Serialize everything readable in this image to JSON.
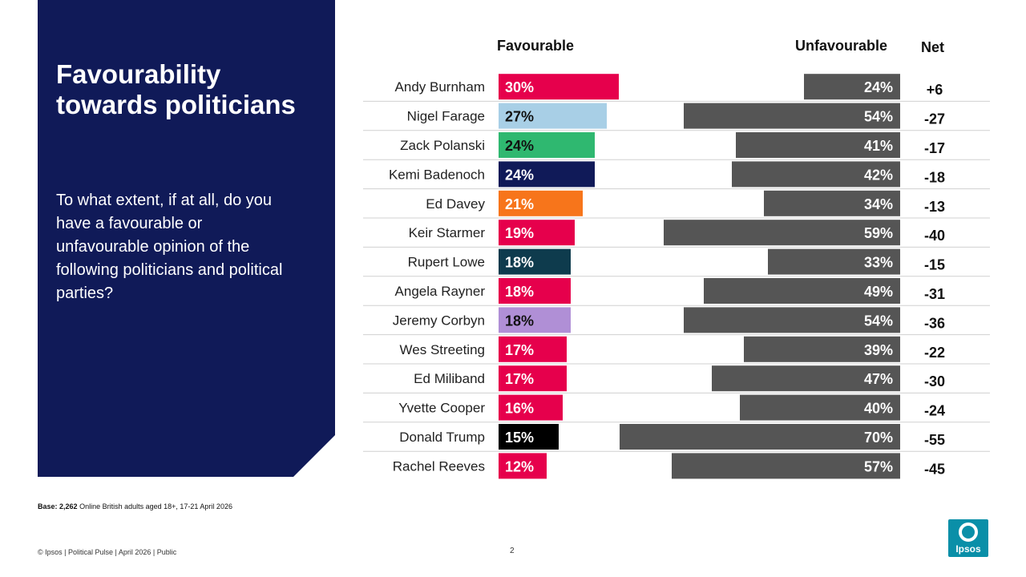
{
  "title": "Favourability towards politicians",
  "question": "To what extent, if at all, do you have a favourable or unfavourable opinion of the following politicians and political parties?",
  "headers": {
    "favourable": "Favourable",
    "unfavourable": "Unfavourable",
    "net": "Net"
  },
  "footnote": {
    "base_label": "Base:",
    "base_value": "2,262",
    "base_text": "Online British adults aged 18+,  17-21 April 2026"
  },
  "footer": "© Ipsos | Political Pulse | April 2026 | Public",
  "page_number": "2",
  "logo_text": "Ipsos",
  "colors": {
    "panel": "#101a58",
    "unfavourable_bar": "#555555",
    "logo": "#0a8fa8"
  },
  "chart_data": {
    "type": "bar",
    "categories": [
      "Andy Burnham",
      "Nigel Farage",
      "Zack Polanski",
      "Kemi Badenoch",
      "Ed Davey",
      "Keir Starmer",
      "Rupert Lowe",
      "Angela Rayner",
      "Jeremy Corbyn",
      "Wes Streeting",
      "Ed Miliband",
      "Yvette Cooper",
      "Donald Trump",
      "Rachel Reeves"
    ],
    "series": [
      {
        "name": "Favourable",
        "values": [
          30,
          27,
          24,
          24,
          21,
          19,
          18,
          18,
          18,
          17,
          17,
          16,
          15,
          12
        ],
        "colors": [
          "#e6004c",
          "#a8cfe6",
          "#2fb870",
          "#101a58",
          "#f7751b",
          "#e6004c",
          "#0e3b4d",
          "#e6004c",
          "#b08fd6",
          "#e6004c",
          "#e6004c",
          "#e6004c",
          "#000000",
          "#e6004c"
        ],
        "label_colors": [
          "#ffffff",
          "#111111",
          "#111111",
          "#ffffff",
          "#ffffff",
          "#ffffff",
          "#ffffff",
          "#ffffff",
          "#111111",
          "#ffffff",
          "#ffffff",
          "#ffffff",
          "#ffffff",
          "#ffffff"
        ]
      },
      {
        "name": "Unfavourable",
        "values": [
          24,
          54,
          41,
          42,
          34,
          59,
          33,
          49,
          54,
          39,
          47,
          40,
          70,
          57
        ]
      }
    ],
    "net": [
      "+6",
      "-27",
      "-17",
      "-18",
      "-13",
      "-40",
      "-15",
      "-31",
      "-36",
      "-22",
      "-30",
      "-24",
      "-55",
      "-45"
    ],
    "value_suffix": "%"
  }
}
